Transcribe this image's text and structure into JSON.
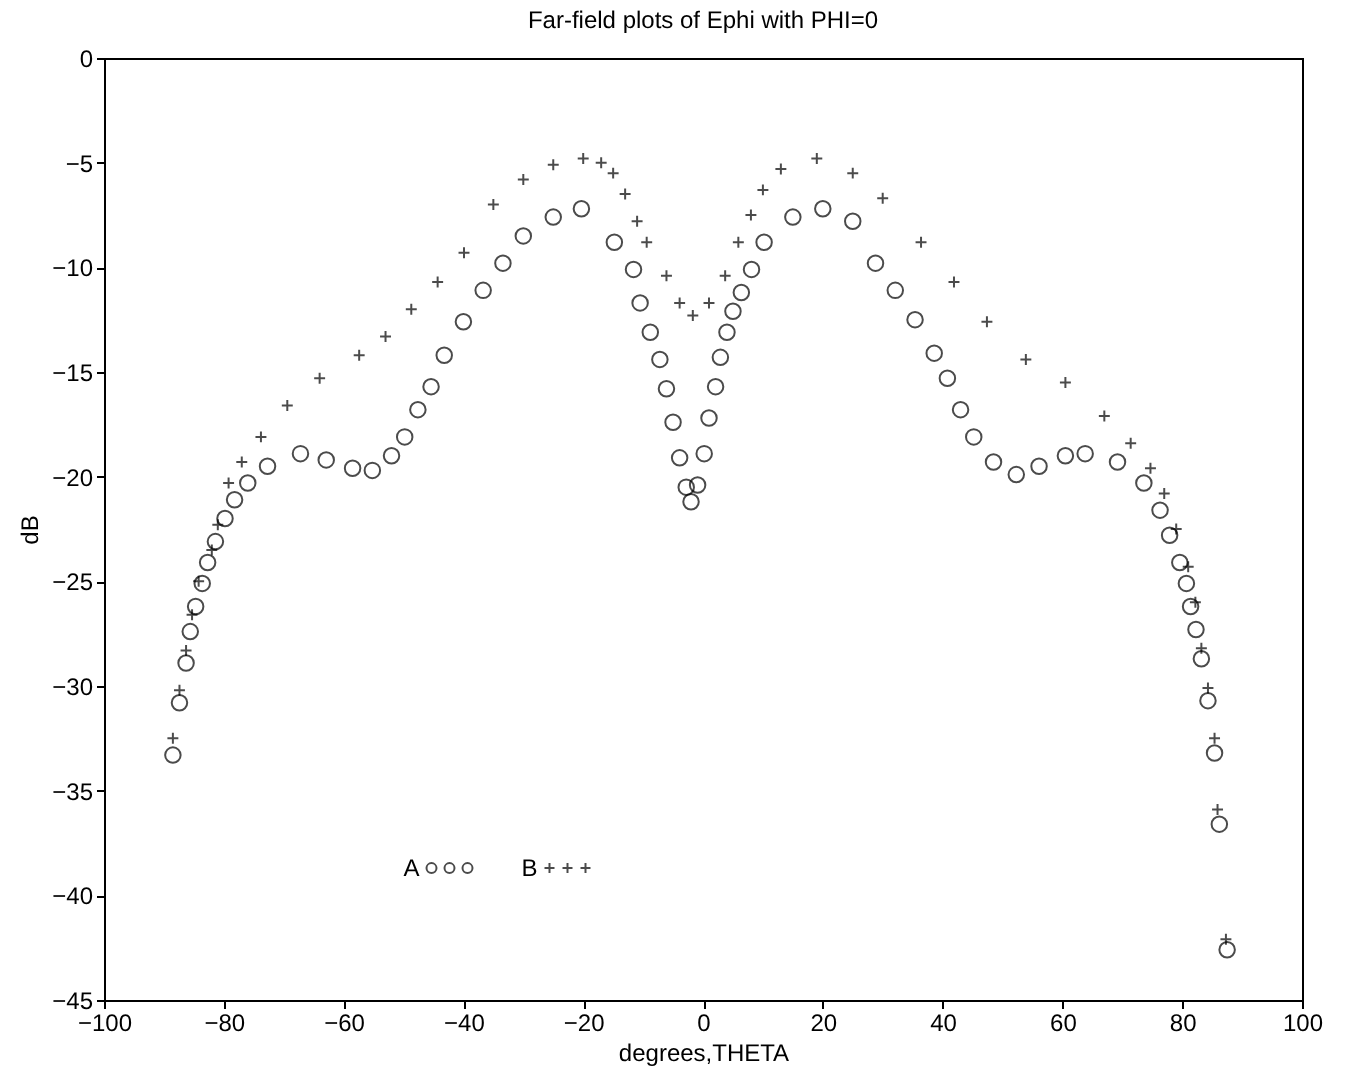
{
  "chart_data": {
    "type": "scatter",
    "title": "Far-field plots of Ephi  with PHI=0",
    "xlabel": "degrees,THETA",
    "ylabel": "dB",
    "xlim": [
      -100,
      100
    ],
    "ylim": [
      -45,
      0
    ],
    "xticks": [
      -100,
      -80,
      -60,
      -40,
      -20,
      0,
      20,
      40,
      60,
      80,
      100
    ],
    "yticks": [
      -45,
      -40,
      -35,
      -30,
      -25,
      -20,
      -15,
      -10,
      -5,
      0
    ],
    "legend": "bottom left",
    "series": [
      {
        "name": "A",
        "color": "#000000",
        "marker": "circle",
        "x": [
          -88.5,
          -87.4,
          -86.3,
          -85.6,
          -84.7,
          -83.6,
          -82.7,
          -81.4,
          -79.8,
          -78.2,
          -76.0,
          -72.7,
          -67.2,
          -62.9,
          -58.5,
          -55.2,
          -52.0,
          -49.8,
          -47.6,
          -45.4,
          -43.2,
          -40,
          -36.7,
          -33.4,
          -30,
          -25,
          -20.3,
          -14.8,
          -11.6,
          -10.5,
          -8.8,
          -7.2,
          -6.1,
          -5.0,
          -3.9,
          -2.8,
          -2.0,
          -0.9,
          0.2,
          1.0,
          2.1,
          2.9,
          4.0,
          5.0,
          6.4,
          8.1,
          10.2,
          15,
          20,
          25,
          28.8,
          32.1,
          35.4,
          38.6,
          40.8,
          43.0,
          45.2,
          48.5,
          52.3,
          56.1,
          60.5,
          63.8,
          69.2,
          73.6,
          76.3,
          77.9,
          79.6,
          80.7,
          81.4,
          82.3,
          83.2,
          84.3,
          85.4,
          86.2,
          87.5
        ],
        "values": [
          -33.3,
          -30.8,
          -28.9,
          -27.4,
          -26.2,
          -25.1,
          -24.1,
          -23.1,
          -22.0,
          -21.1,
          -20.3,
          -19.5,
          -18.9,
          -19.2,
          -19.6,
          -19.7,
          -19.0,
          -18.1,
          -16.8,
          -15.7,
          -14.2,
          -12.6,
          -11.1,
          -9.8,
          -8.5,
          -7.6,
          -7.2,
          -8.8,
          -10.1,
          -11.7,
          -13.1,
          -14.4,
          -15.8,
          -17.4,
          -19.1,
          -20.5,
          -21.2,
          -20.4,
          -18.9,
          -17.2,
          -15.7,
          -14.3,
          -13.1,
          -12.1,
          -11.2,
          -10.1,
          -8.8,
          -7.6,
          -7.2,
          -7.8,
          -9.8,
          -11.1,
          -12.5,
          -14.1,
          -15.3,
          -16.8,
          -18.1,
          -19.3,
          -19.9,
          -19.5,
          -19.0,
          -18.9,
          -19.3,
          -20.3,
          -21.6,
          -22.8,
          -24.1,
          -25.1,
          -26.2,
          -27.3,
          -28.7,
          -30.7,
          -33.2,
          -36.6,
          -42.6
        ]
      },
      {
        "name": "B",
        "color": "#000000",
        "marker": "cross",
        "x": [
          -88.5,
          -87.4,
          -86.3,
          -85.3,
          -84.2,
          -82,
          -81,
          -79.2,
          -77.0,
          -73.8,
          -69.4,
          -64,
          -57.4,
          -53.0,
          -48.7,
          -44.3,
          -39.9,
          -35,
          -30,
          -25,
          -20,
          -17,
          -15,
          -13,
          -11,
          -9.4,
          -6.1,
          -3.9,
          -1.7,
          1.0,
          3.7,
          5.9,
          8,
          10,
          13,
          19,
          25,
          30,
          36.4,
          41.9,
          47.4,
          53.9,
          60.5,
          67.0,
          71.4,
          74.7,
          77,
          79,
          81,
          82.2,
          83.2,
          84.3,
          85.4,
          85.9,
          87.3
        ],
        "values": [
          -32.5,
          -30.2,
          -28.3,
          -26.6,
          -25.0,
          -23.5,
          -22.3,
          -20.3,
          -19.3,
          -18.1,
          -16.6,
          -15.3,
          -14.2,
          -13.3,
          -12.0,
          -10.7,
          -9.3,
          -7.0,
          -5.8,
          -5.1,
          -4.8,
          -5.0,
          -5.5,
          -6.5,
          -7.8,
          -8.8,
          -10.4,
          -11.7,
          -12.3,
          -11.7,
          -10.4,
          -8.8,
          -7.5,
          -6.3,
          -5.3,
          -4.8,
          -5.5,
          -6.7,
          -8.8,
          -10.7,
          -12.6,
          -14.4,
          -15.5,
          -17.1,
          -18.4,
          -19.6,
          -20.8,
          -22.5,
          -24.3,
          -26.0,
          -28.2,
          -30.1,
          -32.5,
          -35.9,
          -42.1
        ]
      }
    ]
  }
}
